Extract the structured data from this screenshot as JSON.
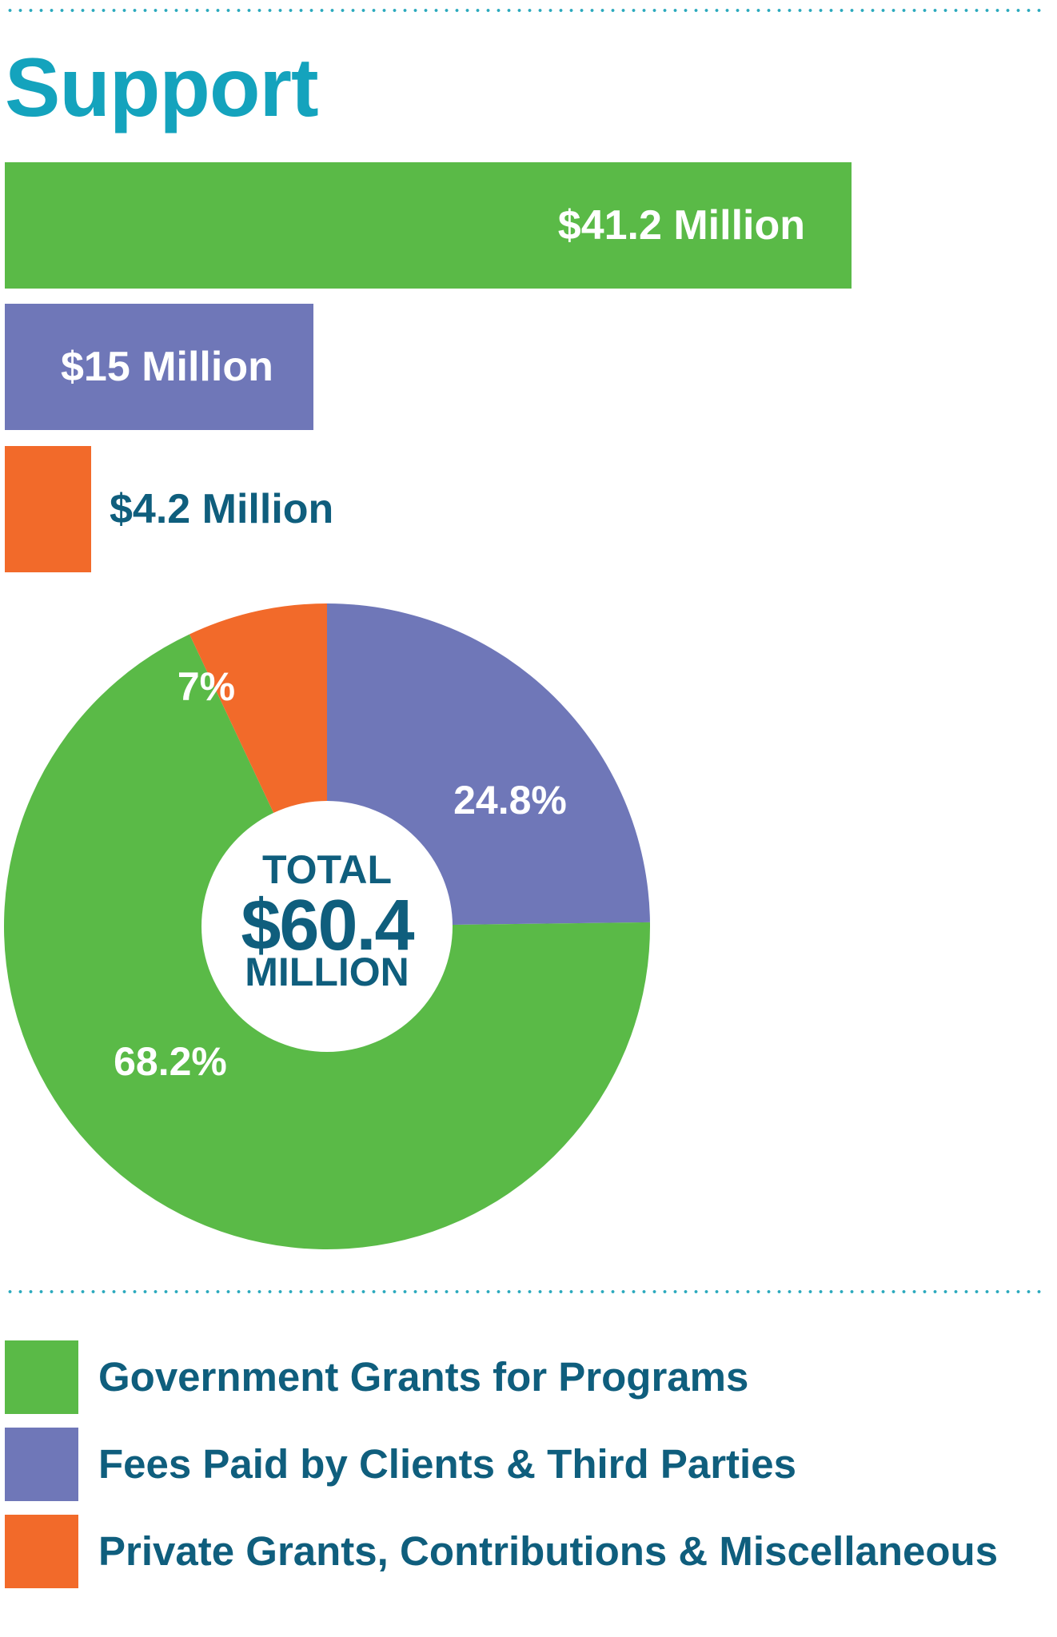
{
  "title": "Support",
  "colors": {
    "title": "#14a3bd",
    "text": "#0f5e7d",
    "green": "#5aba47",
    "purple": "#6f77b8",
    "orange": "#f26a2a",
    "dots": "#2aa9bd"
  },
  "center": {
    "line1": "TOTAL",
    "line2": "$60.4",
    "line3": "MILLION"
  },
  "chart_data": [
    {
      "type": "bar",
      "orientation": "horizontal",
      "categories": [
        "Government Grants for Programs",
        "Fees Paid by Clients & Third Parties",
        "Private Grants, Contributions & Miscellaneous"
      ],
      "values": [
        41.2,
        15,
        4.2
      ],
      "data_labels": [
        "$41.2 Million",
        "$15 Million",
        "$4.2 Million"
      ],
      "colors": [
        "#5aba47",
        "#6f77b8",
        "#f26a2a"
      ],
      "xlim": [
        0,
        51.2
      ]
    },
    {
      "type": "pie",
      "donut": true,
      "categories": [
        "Government Grants for Programs",
        "Fees Paid by Clients & Third Parties",
        "Private Grants, Contributions & Miscellaneous"
      ],
      "values": [
        68.2,
        24.8,
        7
      ],
      "data_labels": [
        "68.2%",
        "24.8%",
        "7%"
      ],
      "colors": [
        "#5aba47",
        "#6f77b8",
        "#f26a2a"
      ]
    }
  ],
  "legend": [
    {
      "label": "Government Grants for Programs",
      "color": "#5aba47"
    },
    {
      "label": "Fees Paid by Clients & Third Parties",
      "color": "#6f77b8"
    },
    {
      "label": "Private Grants, Contributions & Miscellaneous",
      "color": "#f26a2a"
    }
  ]
}
